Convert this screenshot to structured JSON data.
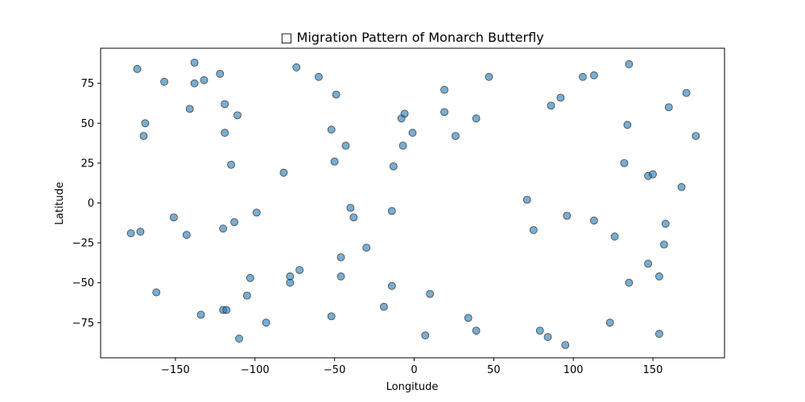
{
  "chart_data": {
    "type": "scatter",
    "title": "□ Migration Pattern of Monarch Butterfly",
    "xlabel": "Longitude",
    "ylabel": "Latitude",
    "xlim": [
      -197,
      195
    ],
    "ylim": [
      -97,
      97
    ],
    "xticks": [
      -150,
      -100,
      -50,
      0,
      50,
      100,
      150
    ],
    "xtick_labels": [
      "−150",
      "−100",
      "−50",
      "0",
      "50",
      "100",
      "150"
    ],
    "yticks": [
      -75,
      -50,
      -25,
      0,
      25,
      50,
      75
    ],
    "ytick_labels": [
      "−75",
      "−50",
      "−25",
      "0",
      "25",
      "50",
      "75"
    ],
    "grid": false,
    "marker_color": "#1f77b4",
    "marker_edge_color": "#333333",
    "marker_alpha": 0.6,
    "points": [
      [
        -174,
        84
      ],
      [
        -138,
        88
      ],
      [
        -157,
        76
      ],
      [
        -138,
        75
      ],
      [
        -132,
        77
      ],
      [
        -122,
        81
      ],
      [
        -141,
        59
      ],
      [
        -169,
        50
      ],
      [
        -170,
        42
      ],
      [
        -119,
        62
      ],
      [
        -119,
        44
      ],
      [
        -111,
        55
      ],
      [
        -115,
        24
      ],
      [
        -82,
        19
      ],
      [
        -74,
        85
      ],
      [
        -60,
        79
      ],
      [
        -49,
        68
      ],
      [
        -52,
        46
      ],
      [
        -43,
        36
      ],
      [
        -50,
        26
      ],
      [
        -13,
        23
      ],
      [
        -8,
        53
      ],
      [
        -6,
        56
      ],
      [
        -1,
        44
      ],
      [
        -7,
        36
      ],
      [
        19,
        71
      ],
      [
        19,
        57
      ],
      [
        39,
        53
      ],
      [
        26,
        42
      ],
      [
        47,
        79
      ],
      [
        86,
        61
      ],
      [
        92,
        66
      ],
      [
        106,
        79
      ],
      [
        113,
        80
      ],
      [
        135,
        87
      ],
      [
        134,
        49
      ],
      [
        160,
        60
      ],
      [
        171,
        69
      ],
      [
        177,
        42
      ],
      [
        132,
        25
      ],
      [
        147,
        17
      ],
      [
        150,
        18
      ],
      [
        168,
        10
      ],
      [
        71,
        2
      ],
      [
        -151,
        -9
      ],
      [
        -178,
        -19
      ],
      [
        -172,
        -18
      ],
      [
        -143,
        -20
      ],
      [
        -120,
        -16
      ],
      [
        -113,
        -12
      ],
      [
        -99,
        -6
      ],
      [
        -40,
        -3
      ],
      [
        -38,
        -9
      ],
      [
        -14,
        -5
      ],
      [
        -30,
        -28
      ],
      [
        -46,
        -34
      ],
      [
        75,
        -17
      ],
      [
        96,
        -8
      ],
      [
        113,
        -11
      ],
      [
        126,
        -21
      ],
      [
        158,
        -13
      ],
      [
        157,
        -26
      ],
      [
        147,
        -38
      ],
      [
        154,
        -46
      ],
      [
        135,
        -50
      ],
      [
        -162,
        -56
      ],
      [
        -134,
        -70
      ],
      [
        -120,
        -67
      ],
      [
        -118,
        -67
      ],
      [
        -105,
        -58
      ],
      [
        -103,
        -47
      ],
      [
        -78,
        -46
      ],
      [
        -78,
        -50
      ],
      [
        -72,
        -42
      ],
      [
        -46,
        -46
      ],
      [
        -14,
        -52
      ],
      [
        10,
        -57
      ],
      [
        -19,
        -65
      ],
      [
        -52,
        -71
      ],
      [
        -93,
        -75
      ],
      [
        -110,
        -85
      ],
      [
        7,
        -83
      ],
      [
        34,
        -72
      ],
      [
        39,
        -80
      ],
      [
        79,
        -80
      ],
      [
        84,
        -84
      ],
      [
        95,
        -89
      ],
      [
        123,
        -75
      ],
      [
        154,
        -82
      ]
    ]
  }
}
